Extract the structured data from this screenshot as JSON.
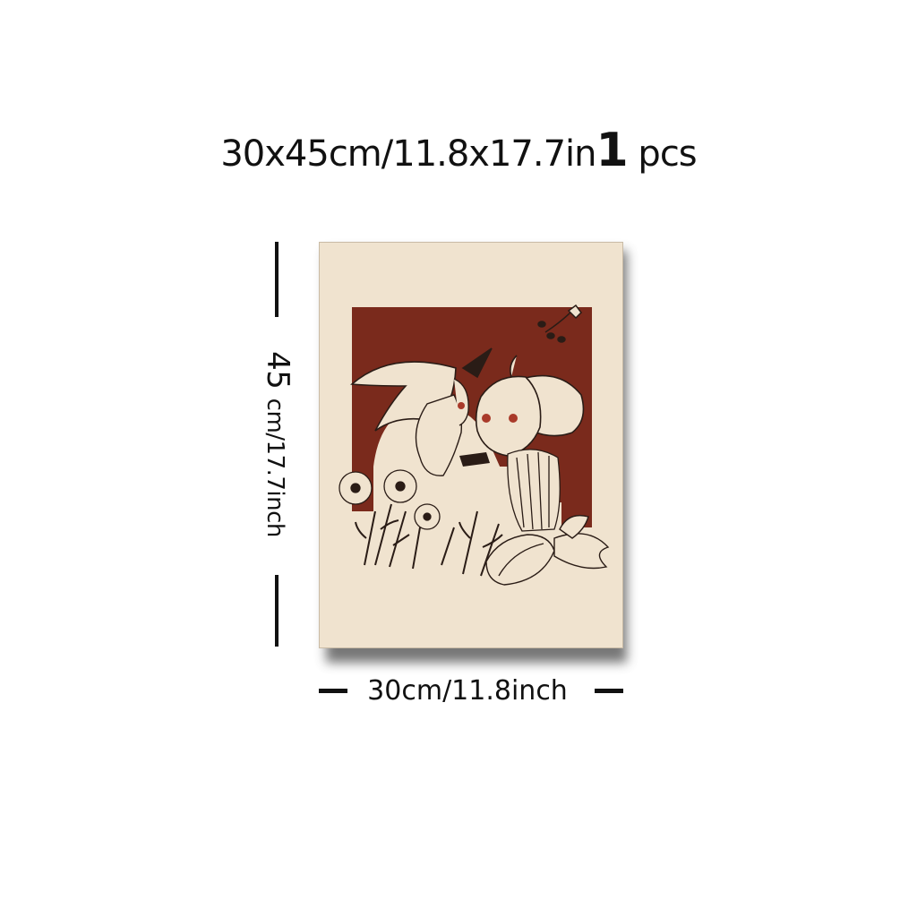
{
  "headline": {
    "size": "30x45cm/11.8x17.7in",
    "qty_number": "1",
    "qty_unit": "pcs"
  },
  "dimensions": {
    "height_value": "45",
    "height_unit": "cm/17.7inch",
    "width_label": "30cm/11.8inch"
  },
  "artwork": {
    "subject": "witch-and-pumpkin-illustration",
    "palette": {
      "canvas": "#f0e3cf",
      "accent": "#7a2a1c",
      "ink": "#2a1c16"
    }
  }
}
